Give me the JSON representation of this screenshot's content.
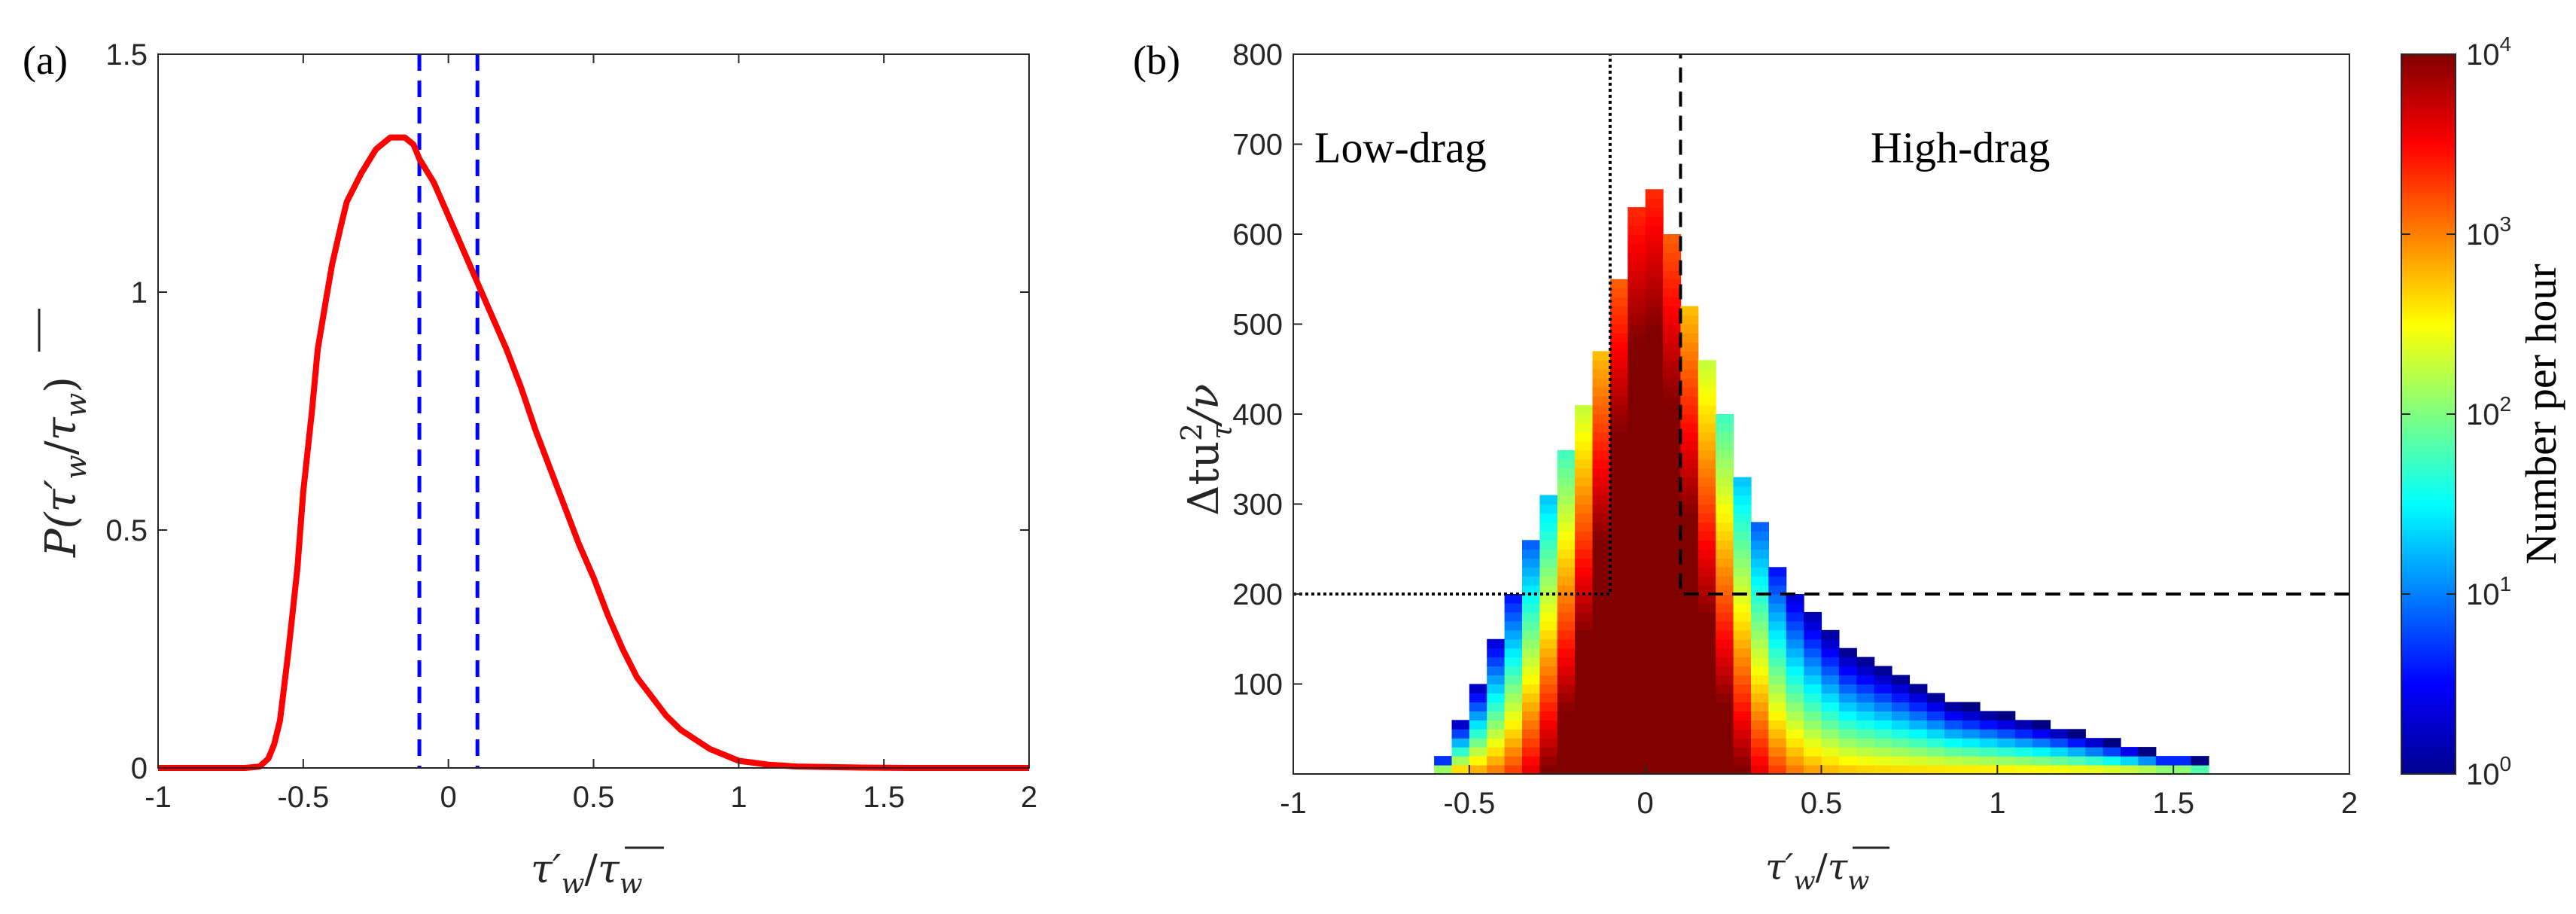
{
  "chart_data": [
    {
      "panel_label": "(a)",
      "type": "line",
      "xlabel_main": "τ′",
      "xlabel_sub": "w",
      "xlabel_slash": "/",
      "xlabel_bar": "τ",
      "xlabel_bar_sub": "w",
      "ylabel_text": "P(τ′",
      "ylabel_sub": "w",
      "ylabel_slash": "/",
      "ylabel_bar": "τ",
      "ylabel_bar_sub": "w",
      "ylabel_close": ")",
      "xlim": [
        -1,
        2
      ],
      "ylim": [
        0,
        1.5
      ],
      "xticks": [
        "-1",
        "-0.5",
        "0",
        "0.5",
        "1",
        "1.5",
        "2"
      ],
      "xtick_values": [
        -1,
        -0.5,
        0,
        0.5,
        1,
        1.5,
        2
      ],
      "yticks": [
        "0",
        "0.5",
        "1",
        "1.5"
      ],
      "ytick_values": [
        0,
        0.5,
        1,
        1.5
      ],
      "series": [
        {
          "color": "#ff0000",
          "x": [
            -1.0,
            -0.7,
            -0.65,
            -0.62,
            -0.6,
            -0.58,
            -0.55,
            -0.52,
            -0.5,
            -0.47,
            -0.45,
            -0.42,
            -0.4,
            -0.37,
            -0.35,
            -0.3,
            -0.25,
            -0.2,
            -0.15,
            -0.12,
            -0.1,
            -0.05,
            0.0,
            0.05,
            0.1,
            0.15,
            0.2,
            0.25,
            0.3,
            0.35,
            0.4,
            0.45,
            0.5,
            0.55,
            0.6,
            0.65,
            0.7,
            0.75,
            0.8,
            0.9,
            1.0,
            1.1,
            1.2,
            1.4,
            1.6,
            1.8,
            2.0
          ],
          "y": [
            0.0,
            0.0,
            0.003,
            0.02,
            0.05,
            0.1,
            0.25,
            0.42,
            0.58,
            0.75,
            0.88,
            0.99,
            1.06,
            1.14,
            1.19,
            1.25,
            1.3,
            1.325,
            1.325,
            1.31,
            1.28,
            1.23,
            1.16,
            1.09,
            1.02,
            0.95,
            0.88,
            0.8,
            0.71,
            0.63,
            0.55,
            0.47,
            0.4,
            0.32,
            0.25,
            0.19,
            0.15,
            0.11,
            0.08,
            0.04,
            0.015,
            0.007,
            0.003,
            0.001,
            0.0,
            0.0,
            0.0
          ]
        }
      ],
      "vlines": [
        -0.1,
        0.1
      ],
      "vline_color": "#0000ff"
    },
    {
      "panel_label": "(b)",
      "type": "heatmap",
      "xlabel_main": "τ′",
      "xlabel_sub": "w",
      "xlabel_slash": "/",
      "xlabel_bar": "τ",
      "xlabel_bar_sub": "w",
      "ylabel_text": "Δtu",
      "ylabel_sup": "2",
      "ylabel_sub": "τ",
      "ylabel_tail": "/ν",
      "xlim": [
        -1,
        2
      ],
      "ylim": [
        0,
        800
      ],
      "xticks": [
        "-1",
        "-0.5",
        "0",
        "0.5",
        "1",
        "1.5",
        "2"
      ],
      "xtick_values": [
        -1,
        -0.5,
        0,
        0.5,
        1,
        1.5,
        2
      ],
      "yticks": [
        "100",
        "200",
        "300",
        "400",
        "500",
        "600",
        "700",
        "800"
      ],
      "ytick_values": [
        100,
        200,
        300,
        400,
        500,
        600,
        700,
        800
      ],
      "bin_width": 0.05,
      "bin_height": 10,
      "bin_left_edges": [
        -0.6,
        -0.55,
        -0.5,
        -0.45,
        -0.4,
        -0.35,
        -0.3,
        -0.25,
        -0.2,
        -0.15,
        -0.1,
        -0.05,
        0.0,
        0.05,
        0.1,
        0.15,
        0.2,
        0.25,
        0.3,
        0.35,
        0.4,
        0.45,
        0.5,
        0.55,
        0.6,
        0.65,
        0.7,
        0.75,
        0.8,
        0.85,
        0.9,
        0.95,
        1.0,
        1.05,
        1.1,
        1.15,
        1.2,
        1.25,
        1.3,
        1.35,
        1.4,
        1.45,
        1.5,
        1.55
      ],
      "column_max_duration": [
        20,
        60,
        100,
        150,
        200,
        260,
        310,
        360,
        410,
        470,
        550,
        630,
        650,
        600,
        520,
        460,
        400,
        330,
        280,
        230,
        200,
        180,
        160,
        140,
        130,
        120,
        110,
        100,
        90,
        80,
        75,
        70,
        65,
        60,
        55,
        50,
        45,
        40,
        35,
        30,
        25,
        20,
        20,
        15
      ],
      "regions": [
        {
          "label": "Low-drag",
          "x_threshold": -0.1,
          "duration_threshold": 200,
          "line_style": "dotted"
        },
        {
          "label": "High-drag",
          "x_threshold": 0.1,
          "duration_threshold": 200,
          "line_style": "dashed"
        }
      ],
      "colorbar": {
        "label": "Number per hour",
        "scale": "log",
        "range": [
          1,
          10000
        ],
        "tick_base": "10",
        "tick_exponents": [
          "0",
          "1",
          "2",
          "3",
          "4"
        ],
        "colormap": "jet"
      }
    }
  ]
}
